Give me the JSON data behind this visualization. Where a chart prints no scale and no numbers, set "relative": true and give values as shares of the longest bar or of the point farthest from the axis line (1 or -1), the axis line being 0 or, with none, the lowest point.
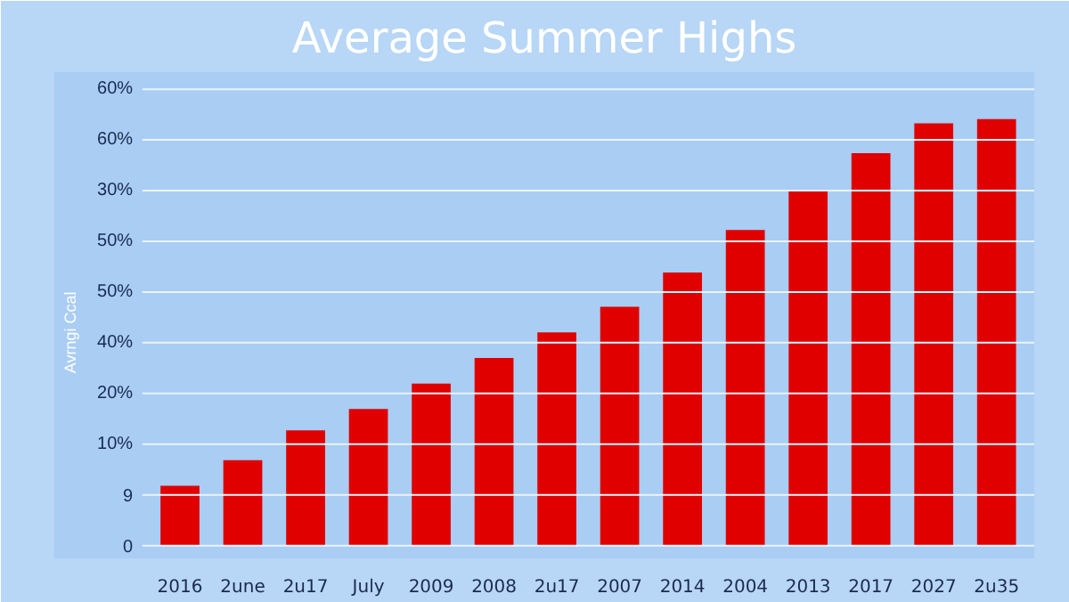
{
  "chart_data": {
    "type": "bar",
    "title": "Average Summer Highs",
    "ylabel": "Avrngi Ccal",
    "categories": [
      "2016",
      "2une",
      "2u17",
      "July",
      "2009",
      "2008",
      "2u17",
      "2007",
      "2014",
      "2004",
      "2013",
      "2017",
      "2027",
      "2u35"
    ],
    "values": [
      0.14,
      0.2,
      0.27,
      0.32,
      0.38,
      0.44,
      0.5,
      0.56,
      0.64,
      0.74,
      0.83,
      0.92,
      0.99,
      1
    ],
    "relative": true,
    "color": "#e00000",
    "annotations": [
      "60%",
      "60%",
      "30%",
      "50%",
      "50%",
      "40%",
      "20%",
      "10%",
      "9",
      "0"
    ],
    "grid": "y"
  }
}
